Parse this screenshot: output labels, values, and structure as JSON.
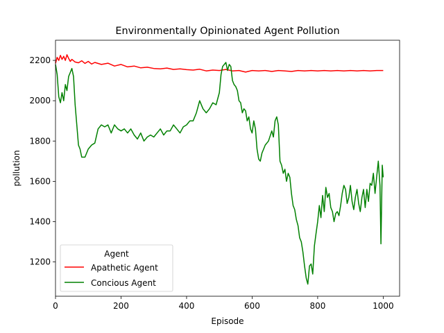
{
  "chart_data": {
    "type": "line",
    "title": "Environmentally Opinionated Agent Pollution",
    "xlabel": "Episode",
    "ylabel": "pollution",
    "xlim": [
      0,
      1050
    ],
    "ylim": [
      1030,
      2300
    ],
    "xticks": [
      0,
      200,
      400,
      600,
      800,
      1000
    ],
    "yticks": [
      1200,
      1400,
      1600,
      1800,
      2000,
      2200
    ],
    "grid": false,
    "legend": {
      "title": "Agent",
      "placement": "lower-left"
    },
    "series": [
      {
        "name": "Apathetic Agent",
        "color": "#ff0000",
        "points": [
          [
            0,
            2185
          ],
          [
            5,
            2215
          ],
          [
            10,
            2200
          ],
          [
            15,
            2225
          ],
          [
            20,
            2205
          ],
          [
            25,
            2220
          ],
          [
            30,
            2200
          ],
          [
            35,
            2228
          ],
          [
            40,
            2210
          ],
          [
            45,
            2195
          ],
          [
            50,
            2205
          ],
          [
            60,
            2192
          ],
          [
            70,
            2188
          ],
          [
            80,
            2198
          ],
          [
            90,
            2185
          ],
          [
            100,
            2195
          ],
          [
            110,
            2182
          ],
          [
            120,
            2190
          ],
          [
            140,
            2180
          ],
          [
            160,
            2186
          ],
          [
            180,
            2172
          ],
          [
            200,
            2180
          ],
          [
            220,
            2168
          ],
          [
            240,
            2172
          ],
          [
            260,
            2163
          ],
          [
            280,
            2166
          ],
          [
            300,
            2160
          ],
          [
            320,
            2158
          ],
          [
            340,
            2162
          ],
          [
            360,
            2155
          ],
          [
            380,
            2158
          ],
          [
            400,
            2154
          ],
          [
            420,
            2152
          ],
          [
            440,
            2156
          ],
          [
            460,
            2148
          ],
          [
            480,
            2152
          ],
          [
            500,
            2150
          ],
          [
            520,
            2155
          ],
          [
            540,
            2148
          ],
          [
            560,
            2150
          ],
          [
            580,
            2142
          ],
          [
            600,
            2150
          ],
          [
            620,
            2148
          ],
          [
            640,
            2150
          ],
          [
            660,
            2145
          ],
          [
            680,
            2150
          ],
          [
            700,
            2148
          ],
          [
            720,
            2145
          ],
          [
            740,
            2150
          ],
          [
            760,
            2148
          ],
          [
            780,
            2150
          ],
          [
            800,
            2148
          ],
          [
            820,
            2150
          ],
          [
            840,
            2148
          ],
          [
            860,
            2150
          ],
          [
            880,
            2148
          ],
          [
            900,
            2150
          ],
          [
            920,
            2148
          ],
          [
            940,
            2150
          ],
          [
            960,
            2148
          ],
          [
            980,
            2150
          ],
          [
            1000,
            2150
          ]
        ]
      },
      {
        "name": "Concious Agent",
        "color": "#008000",
        "points": [
          [
            0,
            2180
          ],
          [
            5,
            2130
          ],
          [
            10,
            2020
          ],
          [
            15,
            1990
          ],
          [
            20,
            2040
          ],
          [
            25,
            2000
          ],
          [
            30,
            2080
          ],
          [
            35,
            2050
          ],
          [
            40,
            2120
          ],
          [
            45,
            2140
          ],
          [
            50,
            2160
          ],
          [
            55,
            2120
          ],
          [
            60,
            1980
          ],
          [
            65,
            1880
          ],
          [
            70,
            1780
          ],
          [
            75,
            1760
          ],
          [
            80,
            1720
          ],
          [
            90,
            1720
          ],
          [
            100,
            1760
          ],
          [
            110,
            1780
          ],
          [
            120,
            1790
          ],
          [
            130,
            1860
          ],
          [
            140,
            1880
          ],
          [
            150,
            1870
          ],
          [
            160,
            1880
          ],
          [
            170,
            1840
          ],
          [
            180,
            1880
          ],
          [
            190,
            1860
          ],
          [
            200,
            1850
          ],
          [
            210,
            1860
          ],
          [
            220,
            1840
          ],
          [
            230,
            1860
          ],
          [
            240,
            1830
          ],
          [
            250,
            1810
          ],
          [
            260,
            1840
          ],
          [
            270,
            1800
          ],
          [
            280,
            1820
          ],
          [
            290,
            1830
          ],
          [
            300,
            1820
          ],
          [
            310,
            1840
          ],
          [
            320,
            1860
          ],
          [
            330,
            1830
          ],
          [
            340,
            1850
          ],
          [
            350,
            1850
          ],
          [
            360,
            1880
          ],
          [
            370,
            1860
          ],
          [
            380,
            1840
          ],
          [
            390,
            1870
          ],
          [
            400,
            1880
          ],
          [
            410,
            1900
          ],
          [
            420,
            1900
          ],
          [
            430,
            1940
          ],
          [
            440,
            2000
          ],
          [
            450,
            1960
          ],
          [
            460,
            1940
          ],
          [
            470,
            1960
          ],
          [
            480,
            1990
          ],
          [
            490,
            1980
          ],
          [
            500,
            2040
          ],
          [
            505,
            2130
          ],
          [
            510,
            2170
          ],
          [
            515,
            2180
          ],
          [
            520,
            2190
          ],
          [
            525,
            2150
          ],
          [
            530,
            2180
          ],
          [
            535,
            2170
          ],
          [
            540,
            2100
          ],
          [
            545,
            2080
          ],
          [
            550,
            2070
          ],
          [
            555,
            2050
          ],
          [
            560,
            2000
          ],
          [
            565,
            1990
          ],
          [
            570,
            1940
          ],
          [
            575,
            1960
          ],
          [
            580,
            1950
          ],
          [
            585,
            1900
          ],
          [
            590,
            1920
          ],
          [
            595,
            1860
          ],
          [
            600,
            1840
          ],
          [
            605,
            1900
          ],
          [
            610,
            1860
          ],
          [
            615,
            1760
          ],
          [
            620,
            1710
          ],
          [
            625,
            1700
          ],
          [
            630,
            1740
          ],
          [
            635,
            1760
          ],
          [
            640,
            1780
          ],
          [
            650,
            1800
          ],
          [
            660,
            1850
          ],
          [
            665,
            1820
          ],
          [
            670,
            1900
          ],
          [
            675,
            1920
          ],
          [
            680,
            1880
          ],
          [
            685,
            1700
          ],
          [
            690,
            1680
          ],
          [
            695,
            1640
          ],
          [
            700,
            1660
          ],
          [
            705,
            1600
          ],
          [
            710,
            1640
          ],
          [
            715,
            1620
          ],
          [
            720,
            1540
          ],
          [
            725,
            1480
          ],
          [
            730,
            1460
          ],
          [
            735,
            1410
          ],
          [
            740,
            1380
          ],
          [
            745,
            1320
          ],
          [
            750,
            1300
          ],
          [
            755,
            1250
          ],
          [
            760,
            1180
          ],
          [
            765,
            1120
          ],
          [
            770,
            1090
          ],
          [
            775,
            1180
          ],
          [
            780,
            1190
          ],
          [
            785,
            1140
          ],
          [
            790,
            1280
          ],
          [
            795,
            1340
          ],
          [
            800,
            1400
          ],
          [
            805,
            1480
          ],
          [
            810,
            1420
          ],
          [
            815,
            1530
          ],
          [
            820,
            1450
          ],
          [
            825,
            1570
          ],
          [
            830,
            1520
          ],
          [
            835,
            1540
          ],
          [
            840,
            1470
          ],
          [
            845,
            1450
          ],
          [
            850,
            1400
          ],
          [
            855,
            1440
          ],
          [
            860,
            1450
          ],
          [
            865,
            1430
          ],
          [
            870,
            1480
          ],
          [
            875,
            1540
          ],
          [
            880,
            1580
          ],
          [
            885,
            1560
          ],
          [
            890,
            1490
          ],
          [
            895,
            1520
          ],
          [
            900,
            1580
          ],
          [
            905,
            1500
          ],
          [
            910,
            1460
          ],
          [
            915,
            1520
          ],
          [
            920,
            1560
          ],
          [
            925,
            1490
          ],
          [
            930,
            1450
          ],
          [
            935,
            1520
          ],
          [
            940,
            1560
          ],
          [
            945,
            1470
          ],
          [
            950,
            1560
          ],
          [
            955,
            1500
          ],
          [
            960,
            1590
          ],
          [
            965,
            1580
          ],
          [
            970,
            1640
          ],
          [
            975,
            1540
          ],
          [
            980,
            1620
          ],
          [
            985,
            1700
          ],
          [
            990,
            1580
          ],
          [
            993,
            1290
          ],
          [
            995,
            1470
          ],
          [
            997,
            1680
          ],
          [
            1000,
            1620
          ]
        ]
      }
    ]
  }
}
